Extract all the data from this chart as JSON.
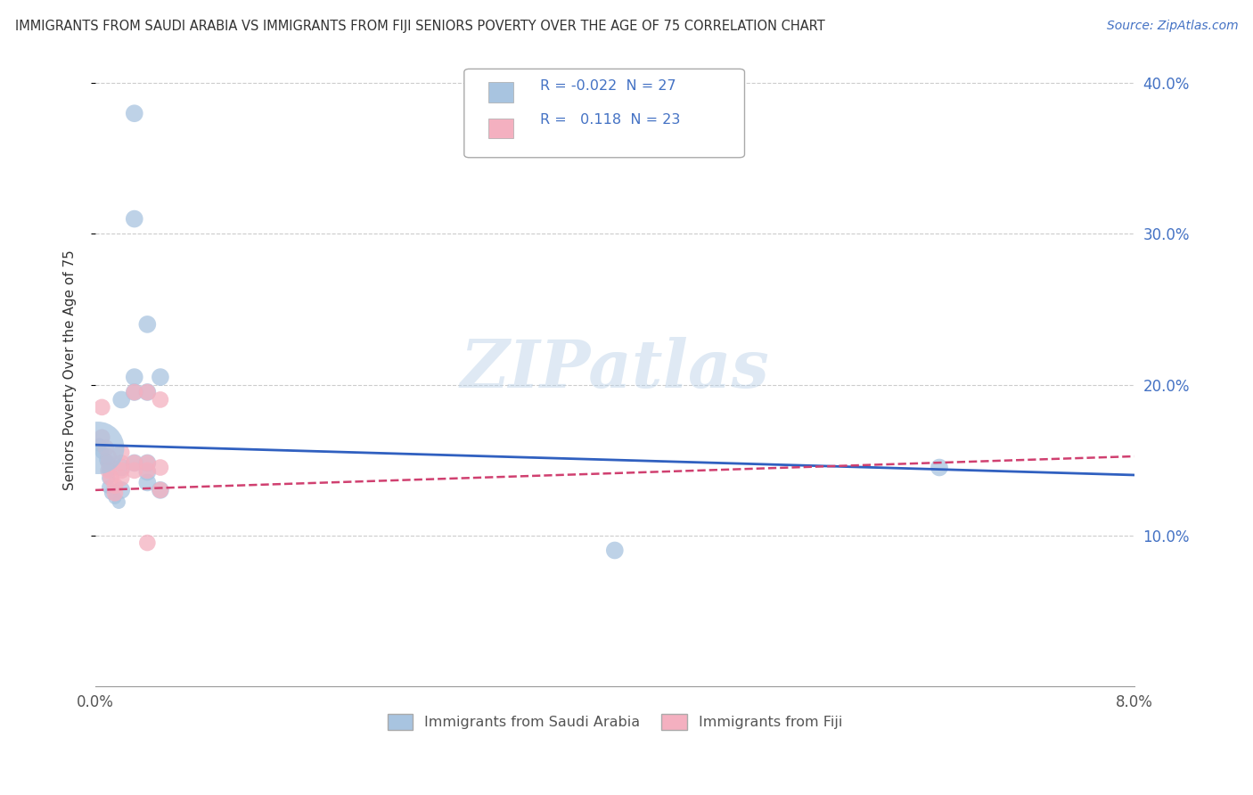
{
  "title": "IMMIGRANTS FROM SAUDI ARABIA VS IMMIGRANTS FROM FIJI SENIORS POVERTY OVER THE AGE OF 75 CORRELATION CHART",
  "source": "Source: ZipAtlas.com",
  "ylabel": "Seniors Poverty Over the Age of 75",
  "xlim": [
    0.0,
    0.08
  ],
  "ylim": [
    0.0,
    0.42
  ],
  "yticks": [
    0.1,
    0.2,
    0.3,
    0.4
  ],
  "ytick_labels": [
    "10.0%",
    "20.0%",
    "30.0%",
    "40.0%"
  ],
  "xticks": [
    0.0,
    0.02,
    0.04,
    0.06,
    0.08
  ],
  "xtick_labels": [
    "0.0%",
    "",
    "",
    "",
    "8.0%"
  ],
  "watermark": "ZIPatlas",
  "legend_blue_r": "-0.022",
  "legend_blue_n": "27",
  "legend_pink_r": "0.118",
  "legend_pink_n": "23",
  "blue_color": "#a8c4e0",
  "pink_color": "#f4b0c0",
  "blue_line_color": "#3060c0",
  "pink_line_color": "#d04070",
  "saudi_points": [
    [
      0.0003,
      0.16
    ],
    [
      0.0005,
      0.155
    ],
    [
      0.0008,
      0.15
    ],
    [
      0.001,
      0.148
    ],
    [
      0.001,
      0.143
    ],
    [
      0.001,
      0.138
    ],
    [
      0.001,
      0.132
    ],
    [
      0.0012,
      0.128
    ],
    [
      0.0015,
      0.125
    ],
    [
      0.0018,
      0.122
    ],
    [
      0.002,
      0.19
    ],
    [
      0.002,
      0.145
    ],
    [
      0.002,
      0.13
    ],
    [
      0.003,
      0.38
    ],
    [
      0.003,
      0.31
    ],
    [
      0.003,
      0.205
    ],
    [
      0.003,
      0.195
    ],
    [
      0.003,
      0.148
    ],
    [
      0.004,
      0.24
    ],
    [
      0.004,
      0.195
    ],
    [
      0.004,
      0.148
    ],
    [
      0.004,
      0.142
    ],
    [
      0.004,
      0.135
    ],
    [
      0.005,
      0.205
    ],
    [
      0.005,
      0.13
    ],
    [
      0.065,
      0.145
    ],
    [
      0.04,
      0.09
    ]
  ],
  "saudi_sizes": [
    120,
    120,
    120,
    120,
    120,
    120,
    120,
    120,
    120,
    120,
    200,
    200,
    200,
    200,
    200,
    200,
    200,
    200,
    200,
    200,
    200,
    200,
    200,
    200,
    200,
    200,
    200
  ],
  "fiji_points": [
    [
      0.0005,
      0.185
    ],
    [
      0.0005,
      0.165
    ],
    [
      0.0008,
      0.158
    ],
    [
      0.001,
      0.152
    ],
    [
      0.001,
      0.148
    ],
    [
      0.001,
      0.143
    ],
    [
      0.0012,
      0.138
    ],
    [
      0.0015,
      0.133
    ],
    [
      0.0015,
      0.128
    ],
    [
      0.002,
      0.155
    ],
    [
      0.002,
      0.148
    ],
    [
      0.002,
      0.143
    ],
    [
      0.002,
      0.138
    ],
    [
      0.003,
      0.195
    ],
    [
      0.003,
      0.148
    ],
    [
      0.003,
      0.143
    ],
    [
      0.004,
      0.195
    ],
    [
      0.004,
      0.148
    ],
    [
      0.004,
      0.143
    ],
    [
      0.004,
      0.095
    ],
    [
      0.005,
      0.19
    ],
    [
      0.005,
      0.145
    ],
    [
      0.005,
      0.13
    ]
  ],
  "fiji_sizes": [
    180,
    180,
    180,
    180,
    180,
    180,
    180,
    180,
    180,
    180,
    180,
    180,
    180,
    180,
    180,
    180,
    180,
    180,
    180,
    180,
    180,
    180,
    180
  ],
  "blue_intercept": 0.16,
  "blue_slope": -0.25,
  "pink_intercept": 0.13,
  "pink_slope": 0.28
}
